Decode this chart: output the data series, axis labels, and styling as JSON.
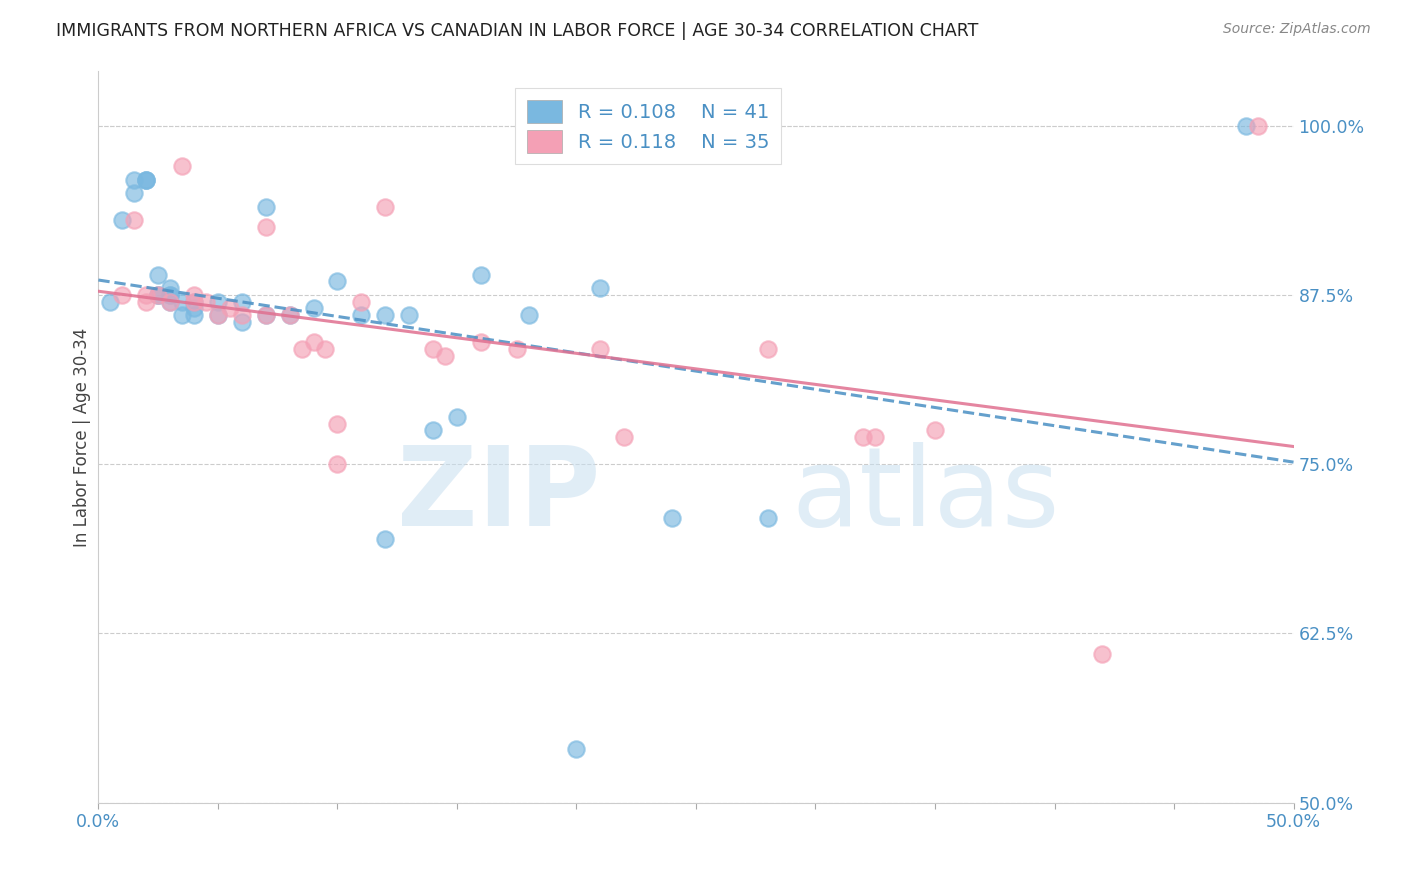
{
  "title": "IMMIGRANTS FROM NORTHERN AFRICA VS CANADIAN IN LABOR FORCE | AGE 30-34 CORRELATION CHART",
  "source": "Source: ZipAtlas.com",
  "ylabel": "In Labor Force | Age 30-34",
  "xlim": [
    0.0,
    0.5
  ],
  "ylim": [
    0.5,
    1.04
  ],
  "ytick_vals": [
    0.5,
    0.625,
    0.75,
    0.875,
    1.0
  ],
  "xtick_vals": [
    0.0,
    0.05,
    0.1,
    0.15,
    0.2,
    0.25,
    0.3,
    0.35,
    0.4,
    0.45,
    0.5
  ],
  "blue_color": "#7ab8e0",
  "pink_color": "#f4a0b5",
  "trendline_blue": "#4a90c4",
  "trendline_pink": "#e07090",
  "blue_scatter_x": [
    0.005,
    0.01,
    0.015,
    0.015,
    0.02,
    0.02,
    0.02,
    0.025,
    0.025,
    0.025,
    0.03,
    0.03,
    0.03,
    0.03,
    0.035,
    0.035,
    0.04,
    0.04,
    0.04,
    0.05,
    0.05,
    0.06,
    0.06,
    0.07,
    0.07,
    0.08,
    0.09,
    0.1,
    0.11,
    0.12,
    0.13,
    0.15,
    0.16,
    0.18,
    0.21,
    0.24,
    0.28,
    0.12,
    0.14,
    0.2,
    0.48
  ],
  "blue_scatter_y": [
    0.87,
    0.93,
    0.96,
    0.95,
    0.96,
    0.96,
    0.96,
    0.89,
    0.875,
    0.875,
    0.88,
    0.875,
    0.875,
    0.87,
    0.87,
    0.86,
    0.87,
    0.865,
    0.86,
    0.87,
    0.86,
    0.87,
    0.855,
    0.94,
    0.86,
    0.86,
    0.865,
    0.885,
    0.86,
    0.86,
    0.86,
    0.785,
    0.89,
    0.86,
    0.88,
    0.71,
    0.71,
    0.695,
    0.775,
    0.54,
    1.0
  ],
  "pink_scatter_x": [
    0.01,
    0.015,
    0.02,
    0.02,
    0.025,
    0.03,
    0.035,
    0.04,
    0.04,
    0.045,
    0.05,
    0.055,
    0.06,
    0.07,
    0.07,
    0.08,
    0.085,
    0.09,
    0.095,
    0.1,
    0.1,
    0.11,
    0.12,
    0.14,
    0.145,
    0.16,
    0.175,
    0.21,
    0.22,
    0.28,
    0.32,
    0.325,
    0.35,
    0.42,
    0.485
  ],
  "pink_scatter_y": [
    0.875,
    0.93,
    0.875,
    0.87,
    0.875,
    0.87,
    0.97,
    0.875,
    0.87,
    0.87,
    0.86,
    0.865,
    0.86,
    0.925,
    0.86,
    0.86,
    0.835,
    0.84,
    0.835,
    0.78,
    0.75,
    0.87,
    0.94,
    0.835,
    0.83,
    0.84,
    0.835,
    0.835,
    0.77,
    0.835,
    0.77,
    0.77,
    0.775,
    0.61,
    1.0
  ]
}
